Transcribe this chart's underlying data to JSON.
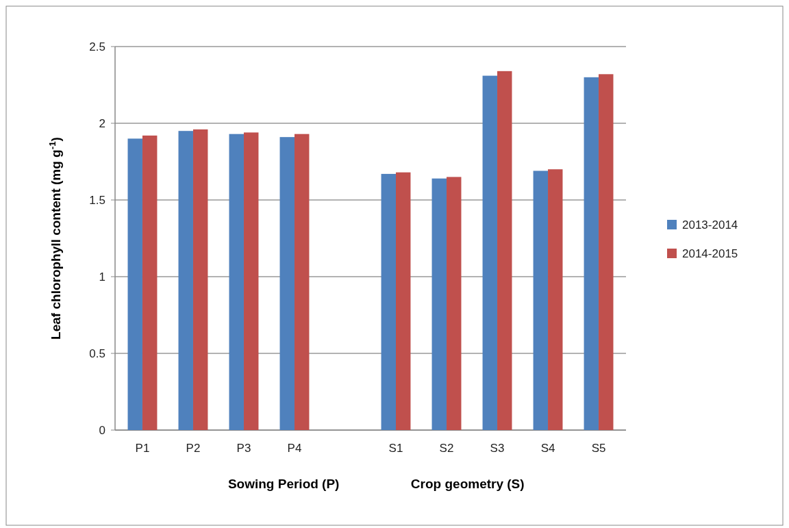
{
  "chart_data": {
    "type": "bar",
    "ylabel": "Leaf chlorophyll content (mg g$^{-1}$)",
    "categories": [
      "P1",
      "P2",
      "P3",
      "P4",
      null,
      "S1",
      "S2",
      "S3",
      "S4",
      "S5"
    ],
    "series": [
      {
        "name": "2013-2014",
        "color": "#4f81bd",
        "values": [
          1.9,
          1.95,
          1.93,
          1.91,
          null,
          1.67,
          1.64,
          2.31,
          1.69,
          2.3
        ]
      },
      {
        "name": "2014-2015",
        "color": "#c0504d",
        "values": [
          1.92,
          1.96,
          1.94,
          1.93,
          null,
          1.68,
          1.65,
          2.34,
          1.7,
          2.32
        ]
      }
    ],
    "ylim": [
      0,
      2.5
    ],
    "yticks": [
      0,
      0.5,
      1,
      1.5,
      2,
      2.5
    ],
    "grid": "y",
    "legend": "right",
    "annotations": [
      "Sowing Period (P)",
      "Crop geometry (S)"
    ]
  }
}
